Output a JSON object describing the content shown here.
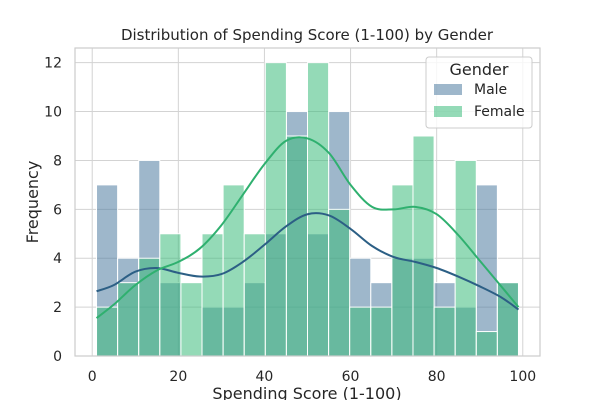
{
  "chart_data": {
    "type": "histogram",
    "title": "Distribution of Spending Score (1-100) by Gender",
    "xlabel": "Spending Score (1-100)",
    "ylabel": "Frequency",
    "xlim": [
      -4,
      104
    ],
    "ylim": [
      0,
      12.6
    ],
    "xticks": [
      0,
      20,
      40,
      60,
      80,
      100
    ],
    "yticks": [
      0,
      2,
      4,
      6,
      8,
      10,
      12
    ],
    "grid": true,
    "legend": {
      "title": "Gender",
      "position": "top-right"
    },
    "bin_start": 1,
    "bin_width": 4.9,
    "series": [
      {
        "name": "Male",
        "color": "#4e7ca0",
        "kde_color": "#2c5f85",
        "values": [
          7,
          4,
          8,
          3,
          0,
          2,
          2,
          3,
          5,
          10,
          5,
          10,
          4,
          3,
          4,
          4,
          3,
          2,
          7,
          3
        ],
        "kde": [
          [
            1,
            2.65
          ],
          [
            5,
            2.9
          ],
          [
            10,
            3.45
          ],
          [
            15,
            3.6
          ],
          [
            20,
            3.4
          ],
          [
            25,
            3.25
          ],
          [
            30,
            3.35
          ],
          [
            35,
            3.85
          ],
          [
            40,
            4.55
          ],
          [
            45,
            5.3
          ],
          [
            50,
            5.8
          ],
          [
            55,
            5.75
          ],
          [
            60,
            5.2
          ],
          [
            65,
            4.5
          ],
          [
            70,
            4.05
          ],
          [
            75,
            3.85
          ],
          [
            80,
            3.6
          ],
          [
            85,
            3.25
          ],
          [
            90,
            2.85
          ],
          [
            95,
            2.4
          ],
          [
            99,
            1.9
          ]
        ]
      },
      {
        "name": "Female",
        "color": "#3cbb7b",
        "kde_color": "#2fb06f",
        "values": [
          2,
          3,
          4,
          5,
          3,
          5,
          7,
          5,
          12,
          9,
          12,
          6,
          2,
          2,
          7,
          9,
          2,
          8,
          1,
          3
        ],
        "kde": [
          [
            1,
            1.55
          ],
          [
            5,
            2.1
          ],
          [
            10,
            2.9
          ],
          [
            15,
            3.5
          ],
          [
            20,
            3.85
          ],
          [
            25,
            4.4
          ],
          [
            30,
            5.35
          ],
          [
            35,
            6.6
          ],
          [
            40,
            7.85
          ],
          [
            45,
            8.8
          ],
          [
            50,
            8.9
          ],
          [
            55,
            8.3
          ],
          [
            60,
            7.0
          ],
          [
            65,
            6.1
          ],
          [
            70,
            6.0
          ],
          [
            75,
            6.1
          ],
          [
            80,
            5.8
          ],
          [
            85,
            4.95
          ],
          [
            90,
            3.9
          ],
          [
            95,
            2.85
          ],
          [
            99,
            2.0
          ]
        ]
      }
    ]
  }
}
